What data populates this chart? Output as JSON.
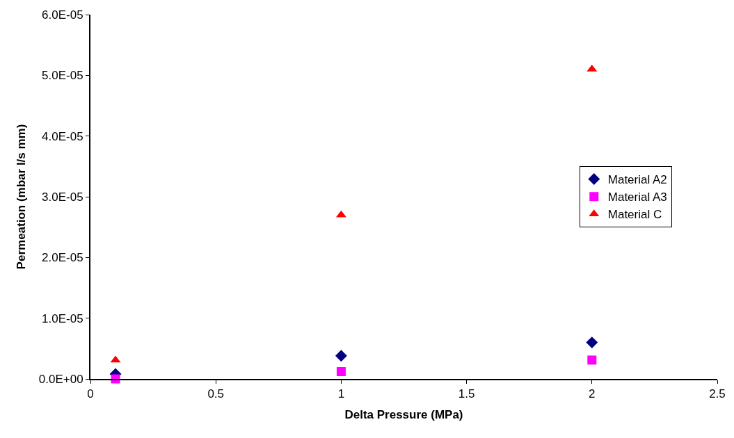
{
  "chart_data": {
    "type": "scatter",
    "xlabel": "Delta Pressure (MPa)",
    "ylabel": "Permeation (mbar l/s mm)",
    "x": [
      0.1,
      1,
      2
    ],
    "series": [
      {
        "name": "Material A2",
        "color": "#000080",
        "marker": "diamond",
        "values": [
          8e-07,
          3.8e-06,
          6e-06
        ]
      },
      {
        "name": "Material A3",
        "color": "#ff00ff",
        "marker": "square",
        "values": [
          0,
          1.2e-06,
          3.1e-06
        ]
      },
      {
        "name": "Material C",
        "color": "#ff0000",
        "marker": "triangle",
        "values": [
          3.1e-06,
          2.7e-05,
          5.1e-05
        ]
      }
    ],
    "xlim": [
      0,
      2.5
    ],
    "xticks": [
      0,
      0.5,
      1,
      1.5,
      2,
      2.5
    ],
    "ylim": [
      0,
      6e-05
    ],
    "yticks": [
      {
        "value": 0,
        "label": "0.0E+00"
      },
      {
        "value": 1e-05,
        "label": "1.0E-05"
      },
      {
        "value": 2e-05,
        "label": "2.0E-05"
      },
      {
        "value": 3e-05,
        "label": "3.0E-05"
      },
      {
        "value": 4e-05,
        "label": "4.0E-05"
      },
      {
        "value": 5e-05,
        "label": "5.0E-05"
      },
      {
        "value": 6e-05,
        "label": "6.0E-05"
      }
    ],
    "legend": "right"
  }
}
